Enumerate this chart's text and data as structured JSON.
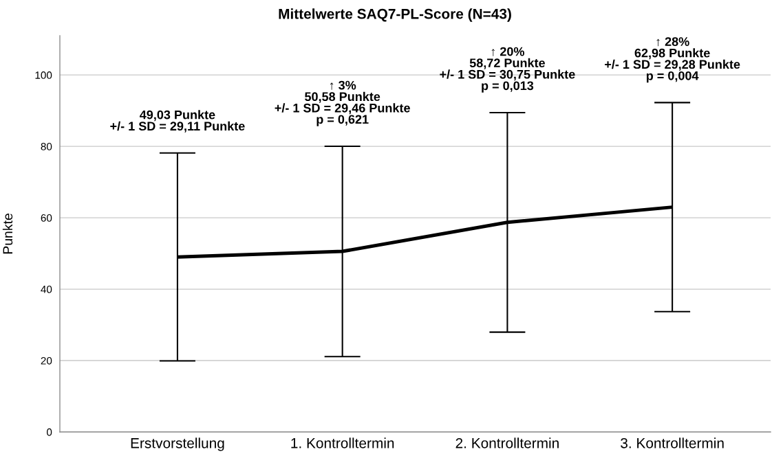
{
  "chart_data": {
    "type": "line",
    "title": "Mittelwerte SAQ7-PL-Score (N=43)",
    "ylabel": "Punkte",
    "categories": [
      "Erstvorstellung",
      "1. Kontrolltermin",
      "2. Kontrolltermin",
      "3. Kontrolltermin"
    ],
    "values": [
      49.03,
      50.58,
      58.72,
      62.98
    ],
    "errors": [
      29.11,
      29.46,
      30.75,
      29.28
    ],
    "color": "#000000",
    "ylim": [
      0,
      111
    ],
    "yticks": [
      0,
      20,
      40,
      60,
      80,
      100
    ],
    "grid": "y",
    "marker": "none",
    "line_style": "solid",
    "annotations": [
      {
        "text": "49,03 Punkte\n+/- 1 SD = 29,11 Punkte",
        "x": "Erstvorstellung",
        "y": 78.14
      },
      {
        "text": "↑ 3%\n50,58 Punkte\n+/- 1 SD = 29,46 Punkte\np = 0,621",
        "x": "1. Kontrolltermin",
        "y": 80.04
      },
      {
        "text": "↑ 20%\n58,72 Punkte\n+/- 1 SD = 30,75 Punkte\np = 0,013",
        "x": "2. Kontrolltermin",
        "y": 89.47
      },
      {
        "text": "↑ 28%\n62,98 Punkte\n+/- 1 SD = 29,28 Punkte\np = 0,004",
        "x": "3. Kontrolltermin",
        "y": 92.26
      }
    ]
  }
}
